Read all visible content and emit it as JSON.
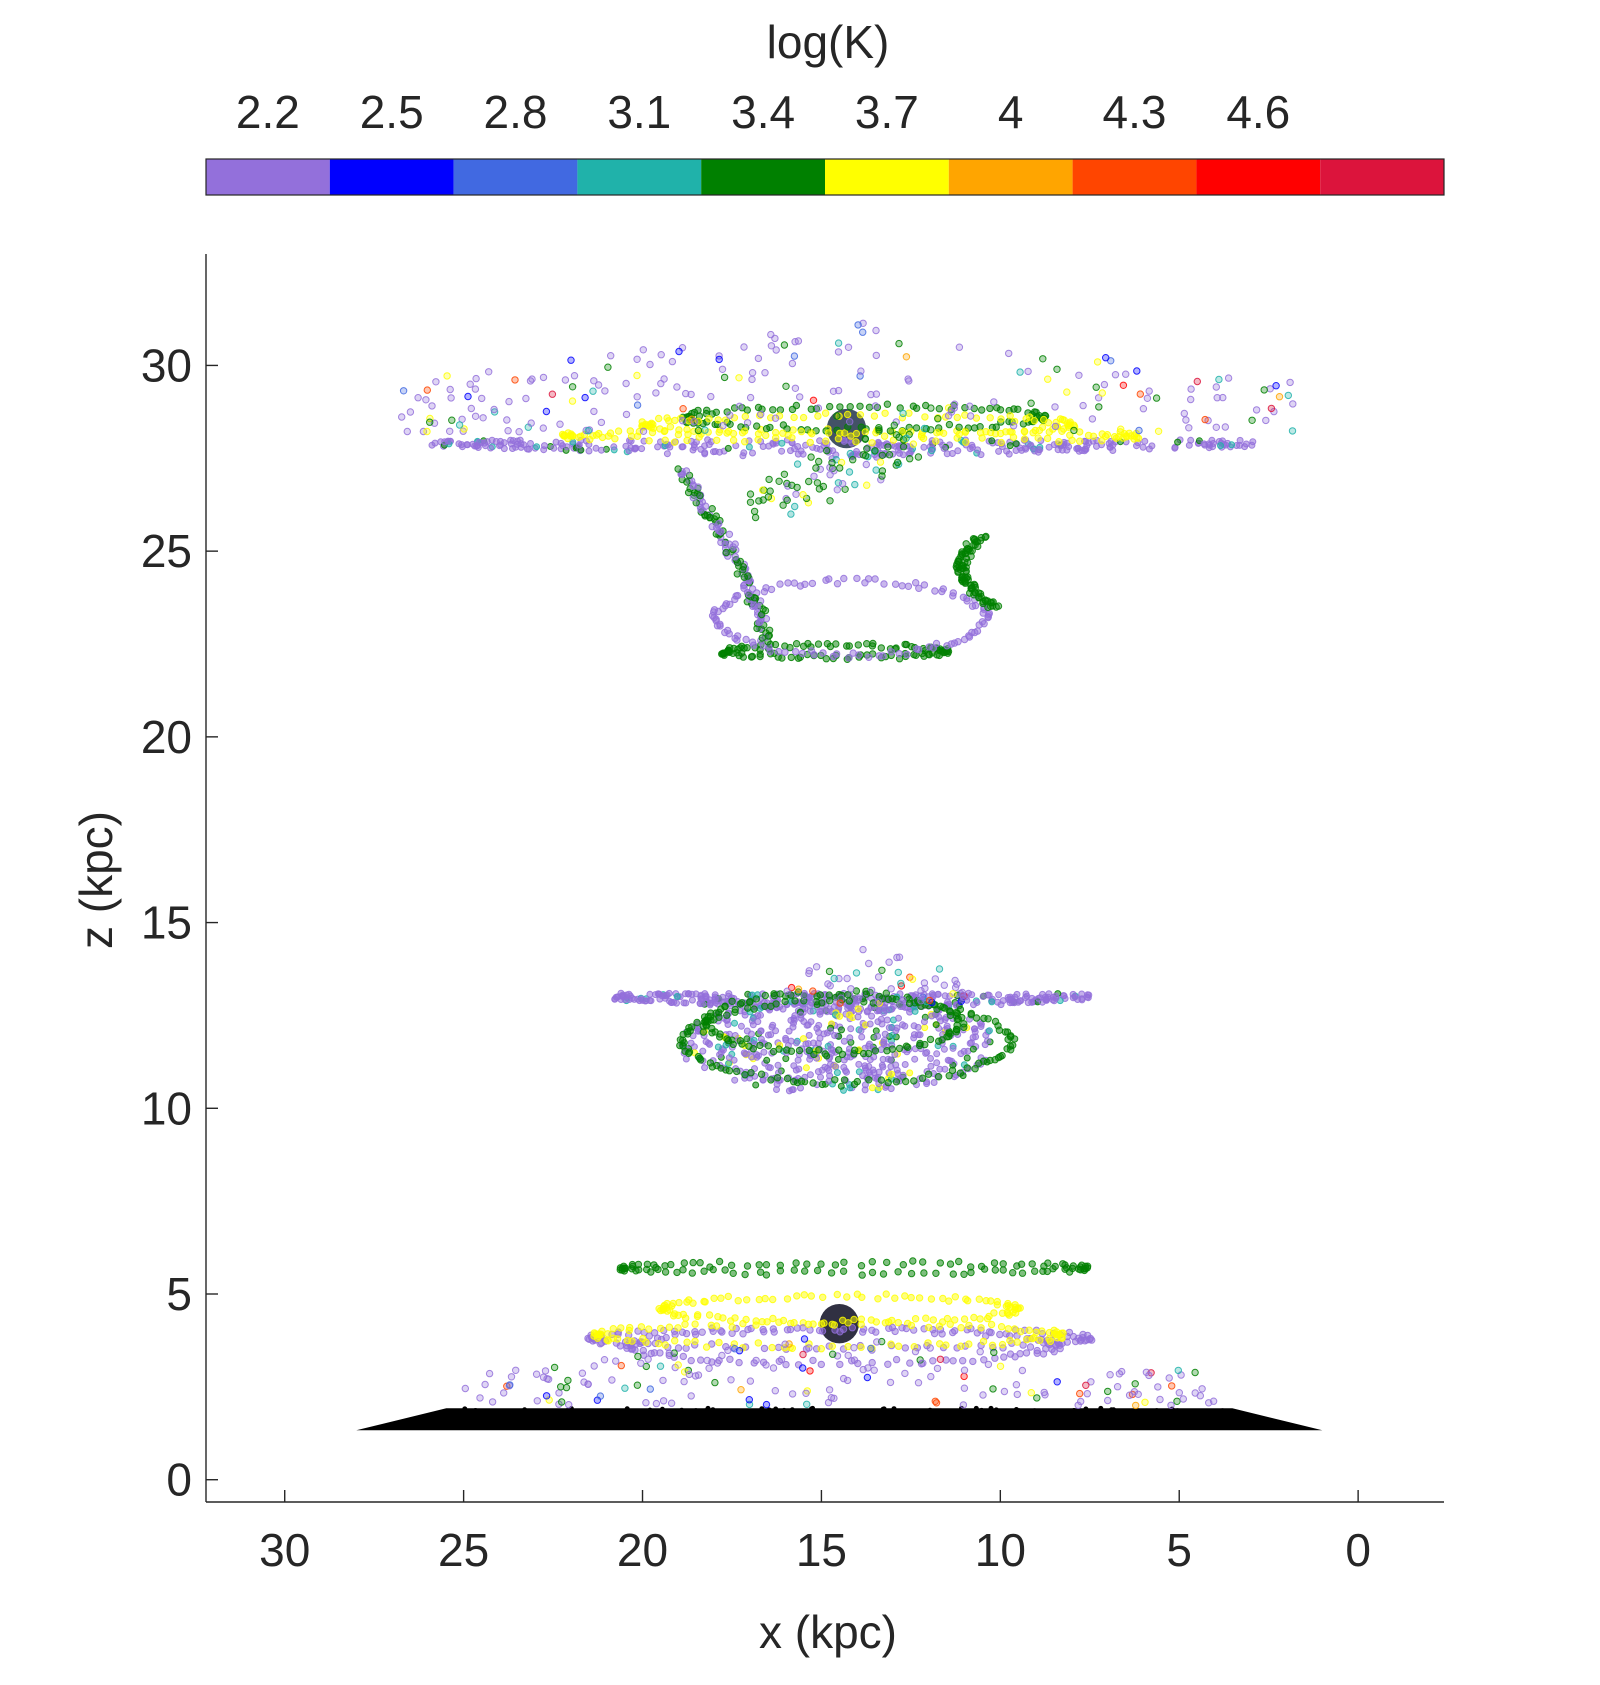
{
  "chart_data": {
    "type": "scatter",
    "title": "",
    "xlabel": "x (kpc)",
    "ylabel": "z (kpc)",
    "x_reversed": true,
    "xlim": [
      32.2,
      -2.4
    ],
    "ylim": [
      -0.6,
      33
    ],
    "xticks": [
      30,
      25,
      20,
      15,
      10,
      5,
      0
    ],
    "yticks": [
      0,
      5,
      10,
      15,
      20,
      25,
      30
    ],
    "grid": false,
    "colorbar": {
      "position": "top",
      "title": "log(K)",
      "ticks": [
        "2.2",
        "2.5",
        "2.8",
        "3.1",
        "3.4",
        "3.7",
        "4",
        "4.3",
        "4.6"
      ],
      "range": [
        2.05,
        5.05
      ],
      "bins": [
        {
          "from": 2.05,
          "to": 2.35,
          "color": "#9370DB"
        },
        {
          "from": 2.35,
          "to": 2.65,
          "color": "#0000FF"
        },
        {
          "from": 2.65,
          "to": 2.95,
          "color": "#4169E1"
        },
        {
          "from": 2.95,
          "to": 3.25,
          "color": "#20B2AA"
        },
        {
          "from": 3.25,
          "to": 3.55,
          "color": "#008000"
        },
        {
          "from": 3.55,
          "to": 3.85,
          "color": "#FFFF00"
        },
        {
          "from": 3.85,
          "to": 4.15,
          "color": "#FFA500"
        },
        {
          "from": 4.15,
          "to": 4.45,
          "color": "#FF4500"
        },
        {
          "from": 4.45,
          "to": 4.75,
          "color": "#FF0000"
        },
        {
          "from": 4.75,
          "to": 5.05,
          "color": "#DC143C"
        }
      ]
    },
    "components": [
      {
        "name": "disk",
        "shape": "disk",
        "x_center": 14.5,
        "z": 1.6,
        "half_width": 13.5,
        "color": "#000000"
      },
      {
        "name": "lower-satellite-core",
        "shape": "core",
        "x": 14.5,
        "z": 4.2,
        "color": "#1a1a2e"
      },
      {
        "name": "upper-satellite-core",
        "shape": "core",
        "x": 14.3,
        "z": 28.3,
        "color": "#2f3f55"
      },
      {
        "name": "lower-orbit-rings",
        "shape": "rings",
        "rings": [
          {
            "x_center": 14.1,
            "z": 5.7,
            "half_width": 6.5,
            "tilt": 0.12,
            "color": "#008000"
          },
          {
            "x_center": 14.5,
            "z": 4.6,
            "half_width": 5.0,
            "tilt": 0.35,
            "color": "#FFFF00"
          },
          {
            "x_center": 14.5,
            "z": 3.8,
            "half_width": 7.0,
            "tilt": 0.25,
            "color": "#9370DB"
          },
          {
            "x_center": 14.4,
            "z": 3.6,
            "half_width": 6.0,
            "tilt": 0.45,
            "color": "#9370DB"
          },
          {
            "x_center": 14.8,
            "z": 3.9,
            "half_width": 6.5,
            "tilt": 0.3,
            "color": "#FFFF00"
          }
        ]
      },
      {
        "name": "lower-scatter",
        "shape": "cloud",
        "x_center": 14.5,
        "z_min": 2.0,
        "z_max": 3.9,
        "half_width": 10.5,
        "count": 180
      },
      {
        "name": "middle-plane",
        "shape": "plane",
        "x_center": 14.2,
        "z": 13.1,
        "half_width": 6.7,
        "color": "#9370DB"
      },
      {
        "name": "middle-blob",
        "shape": "blob",
        "x_center": 14.5,
        "z_center": 11.7,
        "half_width": 4.5,
        "half_height": 1.3,
        "color": "#9370DB"
      },
      {
        "name": "middle-rings",
        "shape": "rings",
        "rings": [
          {
            "x_center": 14.3,
            "z": 11.8,
            "half_width": 4.6,
            "tilt": 1.1,
            "color": "#008000"
          },
          {
            "x_center": 14.7,
            "z": 12.3,
            "half_width": 3.6,
            "tilt": 0.8,
            "color": "#008000"
          }
        ]
      },
      {
        "name": "middle-scatter",
        "shape": "cloud",
        "x_center": 13.5,
        "z_min": 12.8,
        "z_max": 14.4,
        "half_width": 2.5,
        "count": 60
      },
      {
        "name": "lower-helix",
        "shape": "rings",
        "rings": [
          {
            "x_center": 14.6,
            "z": 22.3,
            "half_width": 3.1,
            "tilt": 0.15,
            "color": "#008000"
          },
          {
            "x_center": 14.2,
            "z": 23.2,
            "half_width": 3.8,
            "tilt": 1.0,
            "color": "#9370DB"
          }
        ]
      },
      {
        "name": "helix-arms",
        "shape": "arms",
        "color": "#008000"
      },
      {
        "name": "upper-plane",
        "shape": "plane",
        "x_center": 14.4,
        "z": 28.0,
        "half_width": 11.5,
        "color": "#9370DB"
      },
      {
        "name": "upper-rings",
        "shape": "rings",
        "rings": [
          {
            "x_center": 14.2,
            "z": 28.1,
            "half_width": 8.0,
            "tilt": 0.12,
            "color": "#FFFF00"
          },
          {
            "x_center": 13.8,
            "z": 28.6,
            "half_width": 5.0,
            "tilt": 0.3,
            "color": "#008000"
          },
          {
            "x_center": 14.0,
            "z": 28.4,
            "half_width": 6.0,
            "tilt": 0.25,
            "color": "#FFFF00"
          }
        ]
      },
      {
        "name": "upper-scatter",
        "shape": "cloud",
        "x_center": 14.3,
        "z_min": 28.2,
        "z_max": 31.2,
        "half_width": 12.5,
        "count": 220
      },
      {
        "name": "upper-trail",
        "shape": "trail",
        "color": "#008000"
      }
    ]
  }
}
